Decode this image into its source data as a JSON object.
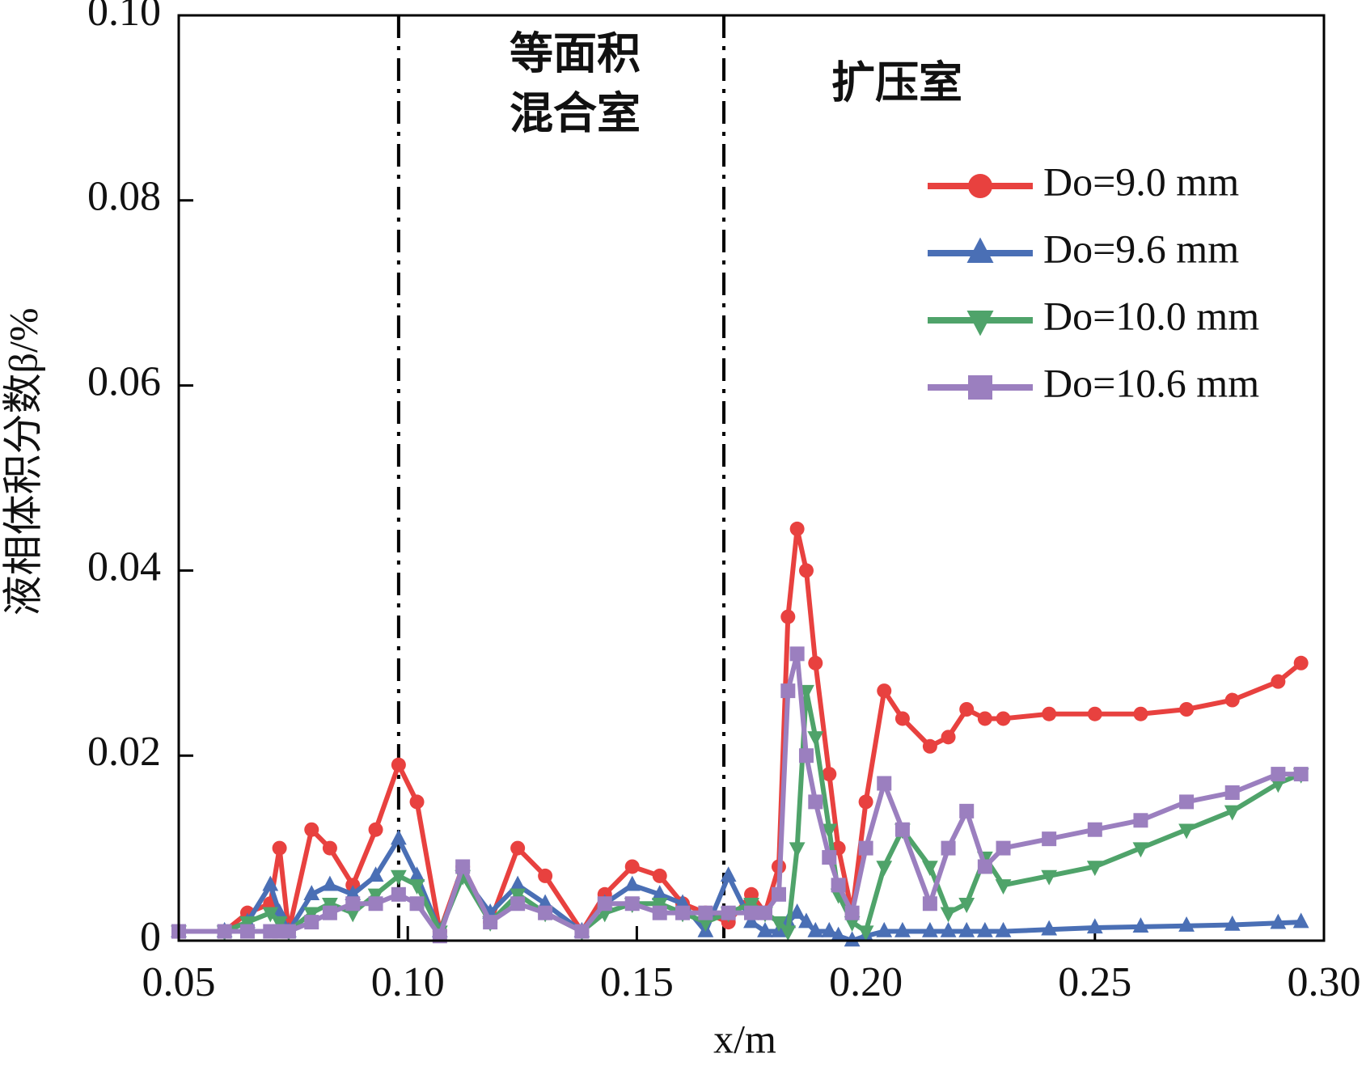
{
  "chart_data": {
    "type": "line",
    "x_label": "x/m",
    "y_label": "液相体积分数β/%",
    "annotations": [
      "等面积",
      "混合室",
      "扩压室"
    ],
    "vlines": [
      0.098,
      0.169
    ],
    "xlim": [
      0.05,
      0.3
    ],
    "ylim": [
      0,
      0.1
    ],
    "xticks": [
      0.05,
      {
        "value": 0.1,
        "label": "0.10"
      },
      0.15,
      {
        "value": 0.2,
        "label": "0.20"
      },
      0.25,
      {
        "value": 0.3,
        "label": "0.30"
      }
    ],
    "yticks": [
      0,
      0.02,
      0.04,
      0.06,
      0.08,
      {
        "value": 0.1,
        "label": "0.10"
      }
    ],
    "legend": "upper right",
    "x": [
      0.05,
      0.06,
      0.065,
      0.07,
      0.072,
      0.074,
      0.079,
      0.083,
      0.088,
      0.093,
      0.098,
      0.102,
      0.107,
      0.112,
      0.118,
      0.124,
      0.13,
      0.138,
      0.143,
      0.149,
      0.155,
      0.16,
      0.165,
      0.17,
      0.175,
      0.178,
      0.181,
      0.183,
      0.185,
      0.187,
      0.189,
      0.192,
      0.194,
      0.197,
      0.2,
      0.204,
      0.208,
      0.214,
      0.218,
      0.222,
      0.226,
      0.23,
      0.24,
      0.25,
      0.26,
      0.27,
      0.28,
      0.29,
      0.295
    ],
    "series": [
      {
        "name": "Do=9.0 mm",
        "color": "#e8413f",
        "marker": "circle",
        "values": [
          0.001,
          0.001,
          0.003,
          0.004,
          0.01,
          0.001,
          0.012,
          0.01,
          0.006,
          0.012,
          0.019,
          0.015,
          0.001,
          0.008,
          0.002,
          0.01,
          0.007,
          0.001,
          0.005,
          0.008,
          0.007,
          0.004,
          0.003,
          0.002,
          0.005,
          0.003,
          0.008,
          0.035,
          0.0445,
          0.04,
          0.03,
          0.018,
          0.01,
          0.003,
          0.015,
          0.027,
          0.024,
          0.021,
          0.022,
          0.025,
          0.024,
          0.024,
          0.0245,
          0.0245,
          0.0245,
          0.025,
          0.026,
          0.028,
          0.03
        ]
      },
      {
        "name": "Do=9.6 mm",
        "color": "#4a6fb5",
        "marker": "triangle-up",
        "values": [
          0.001,
          0.001,
          0.002,
          0.006,
          0.003,
          0.001,
          0.005,
          0.006,
          0.005,
          0.007,
          0.011,
          0.007,
          0.001,
          0.007,
          0.003,
          0.006,
          0.004,
          0.001,
          0.004,
          0.006,
          0.005,
          0.004,
          0.001,
          0.007,
          0.002,
          0.001,
          0.001,
          0.002,
          0.003,
          0.002,
          0.001,
          0.001,
          0.0005,
          0,
          0.0005,
          0.001,
          0.001,
          0.001,
          0.001,
          0.001,
          0.001,
          0.001,
          0.0012,
          0.0014,
          0.0015,
          0.0016,
          0.0017,
          0.0019,
          0.002
        ]
      },
      {
        "name": "Do=10.0 mm",
        "color": "#4fa36a",
        "marker": "triangle-down",
        "values": [
          0.001,
          0.001,
          0.002,
          0.003,
          0.002,
          0.001,
          0.003,
          0.004,
          0.003,
          0.005,
          0.007,
          0.006,
          0.001,
          0.007,
          0.002,
          0.005,
          0.003,
          0.001,
          0.003,
          0.004,
          0.004,
          0.003,
          0.002,
          0.003,
          0.004,
          0.003,
          0.002,
          0.001,
          0.01,
          0.027,
          0.022,
          0.012,
          0.005,
          0.002,
          0.001,
          0.008,
          0.012,
          0.008,
          0.003,
          0.004,
          0.009,
          0.006,
          0.007,
          0.008,
          0.01,
          0.012,
          0.014,
          0.017,
          0.018
        ]
      },
      {
        "name": "Do=10.6 mm",
        "color": "#9b7fbf",
        "marker": "square",
        "values": [
          0.001,
          0.001,
          0.001,
          0.001,
          0.001,
          0.001,
          0.002,
          0.003,
          0.004,
          0.004,
          0.005,
          0.004,
          0.0005,
          0.008,
          0.002,
          0.004,
          0.003,
          0.001,
          0.004,
          0.004,
          0.003,
          0.003,
          0.003,
          0.003,
          0.003,
          0.003,
          0.005,
          0.027,
          0.031,
          0.02,
          0.015,
          0.009,
          0.006,
          0.003,
          0.01,
          0.017,
          0.012,
          0.004,
          0.01,
          0.014,
          0.008,
          0.01,
          0.011,
          0.012,
          0.013,
          0.015,
          0.016,
          0.018,
          0.018
        ]
      }
    ]
  }
}
